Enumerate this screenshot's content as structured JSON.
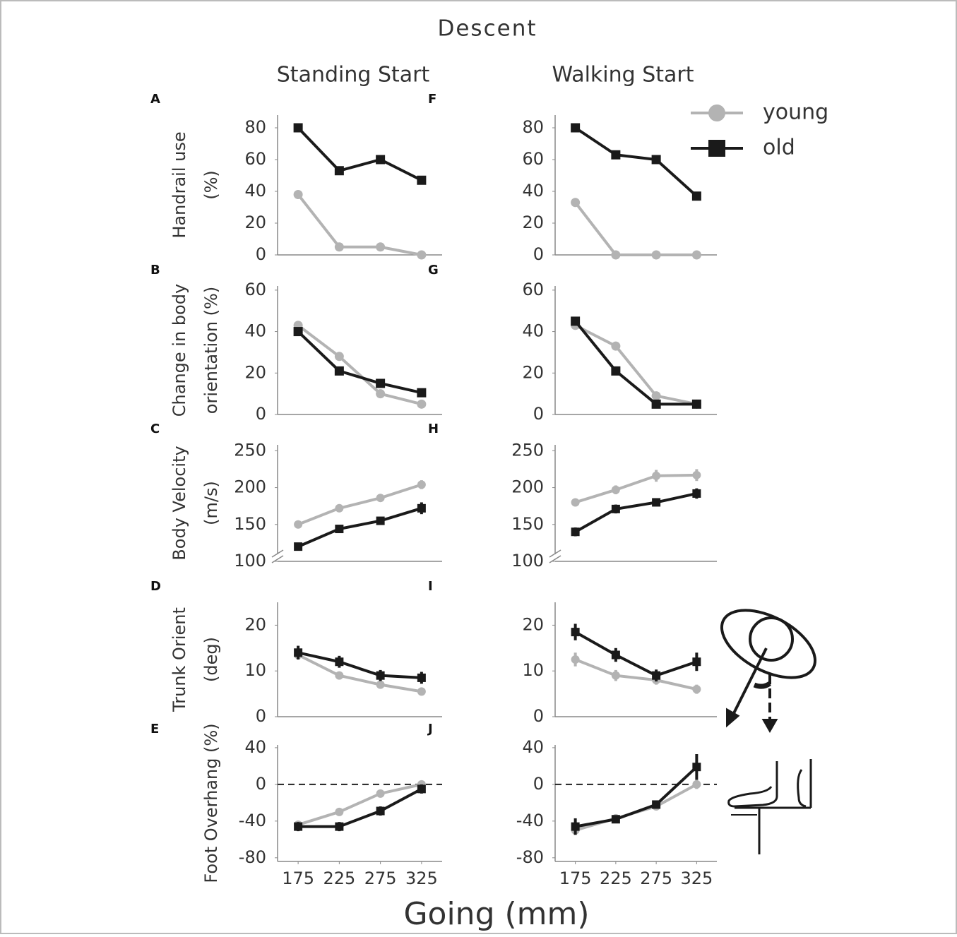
{
  "title": "Descent",
  "column_titles": [
    "Standing Start",
    "Walking Start"
  ],
  "x_label": "Going (mm)",
  "legend": [
    {
      "name": "young",
      "color": "#b3b3b3",
      "marker": "circle"
    },
    {
      "name": "old",
      "color": "#1a1a1a",
      "marker": "square"
    }
  ],
  "chart_data": [
    {
      "type": "line",
      "panel": "A",
      "y_label": [
        "Handrail use",
        "(%)"
      ],
      "x": [
        175,
        225,
        275,
        325
      ],
      "xlim": [
        150,
        350
      ],
      "ylim": [
        0,
        88
      ],
      "yticks": [
        0,
        20,
        40,
        60,
        80
      ],
      "series": [
        {
          "color": "#b3b3b3",
          "marker": "circle",
          "values": [
            38,
            5,
            5,
            0
          ]
        },
        {
          "color": "#1a1a1a",
          "marker": "square",
          "values": [
            80,
            53,
            60,
            47
          ]
        }
      ]
    },
    {
      "type": "line",
      "panel": "B",
      "y_label": [
        "Change in body",
        "orientation (%)"
      ],
      "x": [
        175,
        225,
        275,
        325
      ],
      "xlim": [
        150,
        350
      ],
      "ylim": [
        0,
        62
      ],
      "yticks": [
        0,
        20,
        40,
        60
      ],
      "series": [
        {
          "color": "#b3b3b3",
          "marker": "circle",
          "values": [
            43,
            28,
            10,
            5
          ]
        },
        {
          "color": "#1a1a1a",
          "marker": "square",
          "values": [
            40,
            21,
            15,
            10.5
          ]
        }
      ]
    },
    {
      "type": "line",
      "panel": "C",
      "y_label": [
        "Body Velocity",
        "(m/s)"
      ],
      "x": [
        175,
        225,
        275,
        325
      ],
      "xlim": [
        150,
        350
      ],
      "ylim": [
        100,
        258
      ],
      "yticks": [
        100,
        150,
        200,
        250
      ],
      "axis_break": true,
      "series": [
        {
          "color": "#b3b3b3",
          "marker": "circle",
          "values": [
            150,
            172,
            186,
            204
          ],
          "errors": [
            3,
            4,
            4,
            6
          ]
        },
        {
          "color": "#1a1a1a",
          "marker": "square",
          "values": [
            120,
            144,
            155,
            172
          ],
          "errors": [
            3,
            3,
            4,
            8
          ]
        }
      ]
    },
    {
      "type": "line",
      "panel": "D",
      "y_label": [
        "Trunk Orient",
        "(deg)"
      ],
      "x": [
        175,
        225,
        275,
        325
      ],
      "xlim": [
        150,
        350
      ],
      "ylim": [
        0,
        25
      ],
      "yticks": [
        0,
        10,
        20
      ],
      "series": [
        {
          "color": "#b3b3b3",
          "marker": "circle",
          "values": [
            13.5,
            9,
            7,
            5.5
          ],
          "errors": [
            1,
            0.8,
            0.8,
            0.8
          ]
        },
        {
          "color": "#1a1a1a",
          "marker": "square",
          "values": [
            14,
            12,
            9,
            8.5
          ],
          "errors": [
            1.5,
            1.3,
            1.2,
            1.3
          ]
        }
      ]
    },
    {
      "type": "line",
      "panel": "E",
      "y_label": [
        "Foot Overhang (%)"
      ],
      "x": [
        175,
        225,
        275,
        325
      ],
      "xlim": [
        150,
        350
      ],
      "xticks": [
        175,
        225,
        275,
        325
      ],
      "ylim": [
        -84,
        43
      ],
      "yticks": [
        -80,
        -40,
        0,
        40
      ],
      "reference_line": 0,
      "series": [
        {
          "color": "#b3b3b3",
          "marker": "circle",
          "values": [
            -44,
            -30,
            -10,
            0
          ],
          "errors": [
            3,
            3,
            3,
            3
          ]
        },
        {
          "color": "#1a1a1a",
          "marker": "square",
          "values": [
            -46,
            -46,
            -29,
            -5
          ],
          "errors": [
            5,
            5,
            5,
            5
          ]
        }
      ]
    },
    {
      "type": "line",
      "panel": "F",
      "x": [
        175,
        225,
        275,
        325
      ],
      "xlim": [
        150,
        350
      ],
      "ylim": [
        0,
        88
      ],
      "yticks": [
        0,
        20,
        40,
        60,
        80
      ],
      "series": [
        {
          "color": "#b3b3b3",
          "marker": "circle",
          "values": [
            33,
            0,
            0,
            0
          ]
        },
        {
          "color": "#1a1a1a",
          "marker": "square",
          "values": [
            80,
            63,
            60,
            37
          ]
        }
      ]
    },
    {
      "type": "line",
      "panel": "G",
      "x": [
        175,
        225,
        275,
        325
      ],
      "xlim": [
        150,
        350
      ],
      "ylim": [
        0,
        62
      ],
      "yticks": [
        0,
        20,
        40,
        60
      ],
      "series": [
        {
          "color": "#b3b3b3",
          "marker": "circle",
          "values": [
            43,
            33,
            9,
            5
          ]
        },
        {
          "color": "#1a1a1a",
          "marker": "square",
          "values": [
            45,
            21,
            5,
            5
          ]
        }
      ]
    },
    {
      "type": "line",
      "panel": "H",
      "x": [
        175,
        225,
        275,
        325
      ],
      "xlim": [
        150,
        350
      ],
      "ylim": [
        100,
        258
      ],
      "yticks": [
        100,
        150,
        200,
        250
      ],
      "axis_break": true,
      "series": [
        {
          "color": "#b3b3b3",
          "marker": "circle",
          "values": [
            180,
            197,
            216,
            217
          ],
          "errors": [
            5,
            6,
            8,
            8
          ]
        },
        {
          "color": "#1a1a1a",
          "marker": "square",
          "values": [
            140,
            171,
            180,
            192
          ],
          "errors": [
            6,
            6,
            5,
            7
          ]
        }
      ]
    },
    {
      "type": "line",
      "panel": "I",
      "x": [
        175,
        225,
        275,
        325
      ],
      "xlim": [
        150,
        350
      ],
      "ylim": [
        0,
        25
      ],
      "yticks": [
        0,
        10,
        20
      ],
      "series": [
        {
          "color": "#b3b3b3",
          "marker": "circle",
          "values": [
            12.5,
            9,
            8,
            6
          ],
          "errors": [
            1.5,
            1.2,
            1,
            1
          ]
        },
        {
          "color": "#1a1a1a",
          "marker": "square",
          "values": [
            18.5,
            13.5,
            9,
            12
          ],
          "errors": [
            1.8,
            1.5,
            1.3,
            2
          ]
        }
      ]
    },
    {
      "type": "line",
      "panel": "J",
      "x": [
        175,
        225,
        275,
        325
      ],
      "xlim": [
        150,
        350
      ],
      "xticks": [
        175,
        225,
        275,
        325
      ],
      "ylim": [
        -84,
        43
      ],
      "yticks": [
        -80,
        -40,
        0,
        40
      ],
      "reference_line": 0,
      "series": [
        {
          "color": "#b3b3b3",
          "marker": "circle",
          "values": [
            -50,
            -37,
            -24,
            0
          ],
          "errors": [
            3,
            3,
            3,
            5
          ]
        },
        {
          "color": "#1a1a1a",
          "marker": "square",
          "values": [
            -46,
            -38,
            -22,
            19
          ],
          "errors": [
            9,
            3,
            3,
            14
          ]
        }
      ]
    }
  ]
}
